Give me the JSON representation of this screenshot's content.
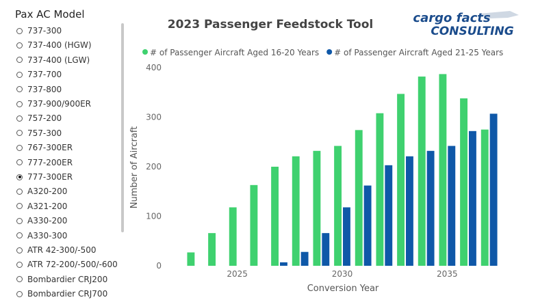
{
  "slicer": {
    "title": "Pax AC Model",
    "items": [
      "737-300",
      "737-400 (HGW)",
      "737-400 (LGW)",
      "737-700",
      "737-800",
      "737-900/900ER",
      "757-200",
      "757-300",
      "767-300ER",
      "777-200ER",
      "777-300ER",
      "A320-200",
      "A321-200",
      "A330-200",
      "A330-300",
      "ATR 42-300/-500",
      "ATR 72-200/-500/-600",
      "Bombardier CRJ200",
      "Bombardier CRJ700"
    ],
    "selected": "777-300ER"
  },
  "logo": {
    "line1": "cargo facts",
    "line2": "CONSULTING"
  },
  "chart_data": {
    "type": "bar",
    "title": "2023 Passenger Feedstock Tool",
    "xlabel": "Conversion Year",
    "ylabel": "Number of Aircraft",
    "x": [
      2023,
      2024,
      2025,
      2026,
      2027,
      2028,
      2029,
      2030,
      2031,
      2032,
      2033,
      2034,
      2035,
      2036,
      2037
    ],
    "series": [
      {
        "name": "# of Passenger Aircraft Aged 16-20 Years",
        "color": "#3fd16f",
        "values": [
          27,
          66,
          118,
          163,
          200,
          221,
          232,
          242,
          274,
          308,
          347,
          382,
          387,
          338,
          275
        ]
      },
      {
        "name": "# of Passenger Aircraft Aged 21-25 Years",
        "color": "#0f58a8",
        "values": [
          null,
          null,
          null,
          null,
          7,
          28,
          66,
          118,
          162,
          203,
          221,
          232,
          242,
          272,
          307
        ]
      }
    ],
    "xlim": [
      2022.5,
      2037.5
    ],
    "xticks": [
      2025,
      2030,
      2035
    ],
    "ylim": [
      0,
      400
    ],
    "yticks": [
      0,
      100,
      200,
      300,
      400
    ],
    "grid": false,
    "legend": "top"
  }
}
